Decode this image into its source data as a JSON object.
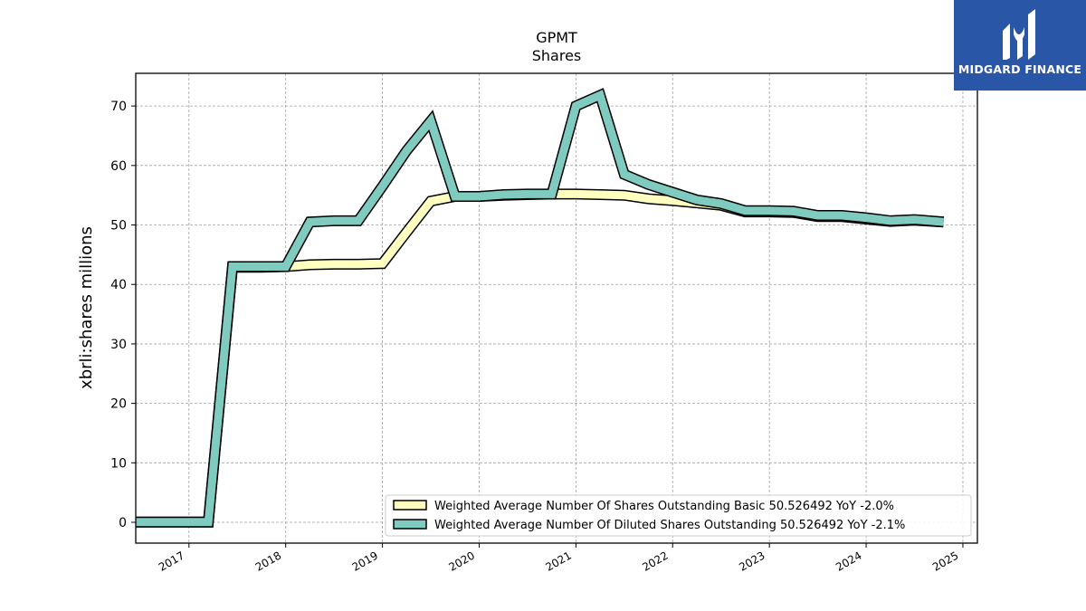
{
  "chart_data": {
    "type": "line",
    "title": "GPMT",
    "subtitle": "Shares",
    "xlabel": "",
    "ylabel": "xbrli:shares millions",
    "ylim": [
      -3.5,
      75.5
    ],
    "xlim": [
      2016.45,
      2025.15
    ],
    "yticks": [
      0,
      10,
      20,
      30,
      40,
      50,
      60,
      70
    ],
    "xticks": [
      2017,
      2018,
      2019,
      2020,
      2021,
      2022,
      2023,
      2024,
      2025
    ],
    "xtick_labels": [
      "2017",
      "2018",
      "2019",
      "2020",
      "2021",
      "2022",
      "2023",
      "2024",
      "2025"
    ],
    "grid": true,
    "legend_position": "lower-right",
    "series": [
      {
        "name": "Weighted Average Number Of Shares Outstanding Basic",
        "legend_label": "Weighted Average Number Of Shares Outstanding Basic  50.526492 YoY -2.0%",
        "color": "#ffffc0",
        "x": [
          2016.45,
          2017.2,
          2017.45,
          2017.75,
          2018.0,
          2018.25,
          2018.5,
          2018.75,
          2019.0,
          2019.25,
          2019.5,
          2019.75,
          2020.0,
          2020.25,
          2020.5,
          2020.75,
          2021.0,
          2021.25,
          2021.5,
          2021.75,
          2022.0,
          2022.25,
          2022.5,
          2022.75,
          2023.0,
          2023.25,
          2023.5,
          2023.75,
          2024.0,
          2024.25,
          2024.5,
          2024.8
        ],
        "y": [
          0.05,
          0.05,
          42.9,
          42.9,
          43.0,
          43.3,
          43.4,
          43.4,
          43.5,
          48.8,
          54.0,
          54.8,
          54.8,
          55.0,
          55.1,
          55.2,
          55.2,
          55.1,
          55.0,
          54.4,
          54.1,
          53.7,
          53.3,
          52.2,
          52.2,
          52.1,
          51.4,
          51.4,
          51.0,
          50.6,
          50.8,
          50.5
        ]
      },
      {
        "name": "Weighted Average Number Of Diluted Shares Outstanding",
        "legend_label": "Weighted Average Number Of Diluted Shares Outstanding  50.526492 YoY -2.1%",
        "color": "#80cbc0",
        "x": [
          2016.45,
          2017.2,
          2017.45,
          2017.75,
          2018.0,
          2018.25,
          2018.5,
          2018.75,
          2019.0,
          2019.25,
          2019.5,
          2019.75,
          2020.0,
          2020.25,
          2020.5,
          2020.75,
          2021.0,
          2021.25,
          2021.5,
          2021.75,
          2022.0,
          2022.25,
          2022.5,
          2022.75,
          2023.0,
          2023.25,
          2023.5,
          2023.75,
          2024.0,
          2024.25,
          2024.5,
          2024.8
        ],
        "y": [
          0.05,
          0.05,
          43.0,
          43.0,
          43.0,
          50.5,
          50.7,
          50.7,
          56.5,
          62.5,
          67.5,
          54.8,
          54.8,
          55.1,
          55.2,
          55.2,
          70.0,
          71.8,
          58.5,
          56.8,
          55.5,
          54.2,
          53.6,
          52.4,
          52.4,
          52.3,
          51.6,
          51.6,
          51.2,
          50.7,
          50.9,
          50.5
        ]
      }
    ]
  },
  "logo": {
    "text": "MIDGARD FINANCE"
  }
}
